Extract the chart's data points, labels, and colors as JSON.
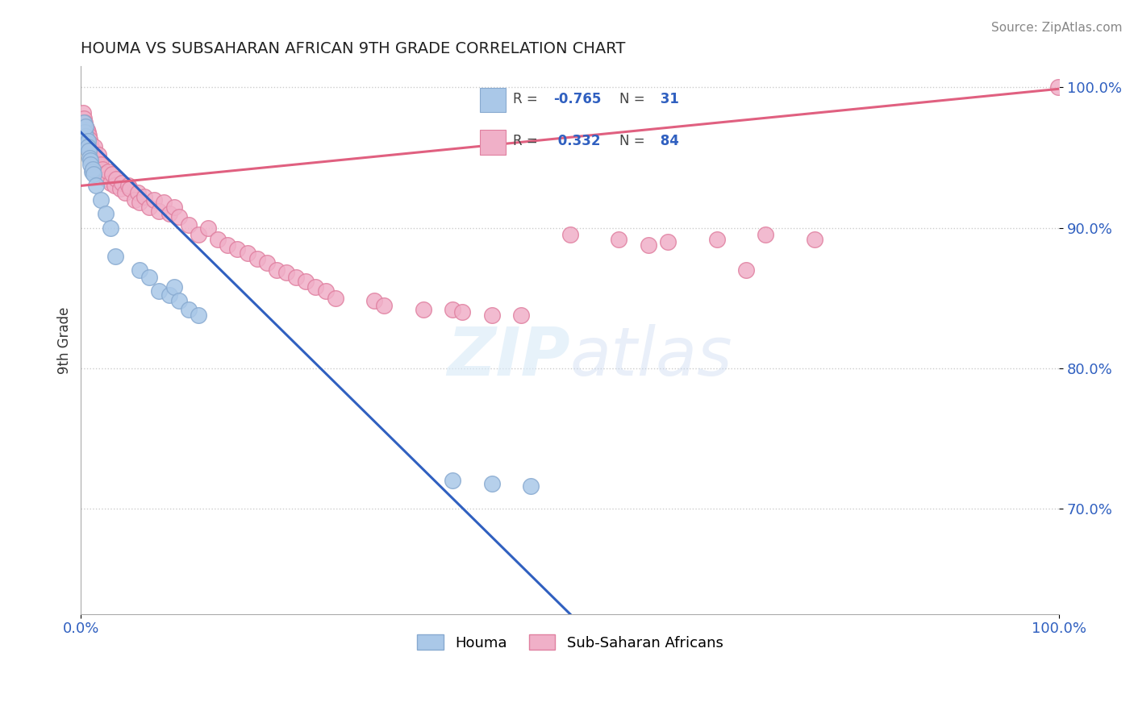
{
  "title": "HOUMA VS SUBSAHARAN AFRICAN 9TH GRADE CORRELATION CHART",
  "source_text": "Source: ZipAtlas.com",
  "ylabel": "9th Grade",
  "xlim": [
    0,
    1
  ],
  "ylim": [
    0.625,
    1.015
  ],
  "xticks": [
    0,
    1
  ],
  "xticklabels": [
    "0.0%",
    "100.0%"
  ],
  "ytick_positions": [
    0.7,
    0.8,
    0.9,
    1.0
  ],
  "ytick_labels": [
    "70.0%",
    "80.0%",
    "90.0%",
    "100.0%"
  ],
  "grid_color": "#cccccc",
  "background_color": "#ffffff",
  "houma_color": "#aac8e8",
  "houma_edge_color": "#88aad0",
  "ssa_color": "#f0b0c8",
  "ssa_edge_color": "#e080a0",
  "blue_line_color": "#3060c0",
  "pink_line_color": "#e06080",
  "legend_label_houma": "Houma",
  "legend_label_ssa": "Sub-Saharan Africans",
  "houma_R": -0.765,
  "houma_N": 31,
  "ssa_R": 0.332,
  "ssa_N": 84,
  "houma_x": [
    0.002,
    0.003,
    0.004,
    0.005,
    0.005,
    0.006,
    0.007,
    0.007,
    0.008,
    0.009,
    0.01,
    0.01,
    0.011,
    0.012,
    0.013,
    0.015,
    0.02,
    0.025,
    0.03,
    0.035,
    0.06,
    0.07,
    0.08,
    0.09,
    0.095,
    0.1,
    0.11,
    0.12,
    0.38,
    0.42,
    0.46
  ],
  "houma_y": [
    0.97,
    0.975,
    0.968,
    0.965,
    0.972,
    0.96,
    0.962,
    0.958,
    0.955,
    0.95,
    0.948,
    0.945,
    0.94,
    0.942,
    0.938,
    0.93,
    0.92,
    0.91,
    0.9,
    0.88,
    0.87,
    0.865,
    0.855,
    0.852,
    0.858,
    0.848,
    0.842,
    0.838,
    0.72,
    0.718,
    0.716
  ],
  "ssa_x": [
    0.002,
    0.003,
    0.003,
    0.004,
    0.005,
    0.005,
    0.006,
    0.006,
    0.007,
    0.007,
    0.008,
    0.008,
    0.009,
    0.009,
    0.01,
    0.01,
    0.011,
    0.012,
    0.013,
    0.013,
    0.014,
    0.015,
    0.015,
    0.016,
    0.018,
    0.018,
    0.02,
    0.02,
    0.022,
    0.024,
    0.026,
    0.028,
    0.03,
    0.032,
    0.034,
    0.036,
    0.04,
    0.042,
    0.045,
    0.048,
    0.05,
    0.055,
    0.058,
    0.06,
    0.065,
    0.07,
    0.075,
    0.08,
    0.085,
    0.09,
    0.095,
    0.1,
    0.11,
    0.12,
    0.13,
    0.14,
    0.15,
    0.16,
    0.17,
    0.18,
    0.19,
    0.2,
    0.21,
    0.22,
    0.23,
    0.24,
    0.25,
    0.26,
    0.3,
    0.31,
    0.35,
    0.38,
    0.39,
    0.42,
    0.45,
    0.5,
    0.55,
    0.58,
    0.6,
    0.65,
    0.68,
    0.7,
    0.75,
    0.999
  ],
  "ssa_y": [
    0.982,
    0.978,
    0.972,
    0.975,
    0.968,
    0.972,
    0.965,
    0.97,
    0.96,
    0.968,
    0.962,
    0.966,
    0.958,
    0.963,
    0.955,
    0.96,
    0.952,
    0.948,
    0.955,
    0.95,
    0.958,
    0.945,
    0.95,
    0.942,
    0.948,
    0.952,
    0.94,
    0.945,
    0.942,
    0.938,
    0.935,
    0.94,
    0.932,
    0.938,
    0.93,
    0.935,
    0.928,
    0.932,
    0.925,
    0.93,
    0.928,
    0.92,
    0.925,
    0.918,
    0.922,
    0.915,
    0.92,
    0.912,
    0.918,
    0.91,
    0.915,
    0.908,
    0.902,
    0.895,
    0.9,
    0.892,
    0.888,
    0.885,
    0.882,
    0.878,
    0.875,
    0.87,
    0.868,
    0.865,
    0.862,
    0.858,
    0.855,
    0.85,
    0.848,
    0.845,
    0.842,
    0.842,
    0.84,
    0.838,
    0.838,
    0.895,
    0.892,
    0.888,
    0.89,
    0.892,
    0.87,
    0.895,
    0.892,
    1.0
  ],
  "blue_line_x0": 0.0,
  "blue_line_y0": 0.968,
  "blue_line_x1": 0.5,
  "blue_line_y1": 0.625,
  "pink_line_x0": 0.0,
  "pink_line_y0": 0.93,
  "pink_line_x1": 1.0,
  "pink_line_y1": 0.999
}
